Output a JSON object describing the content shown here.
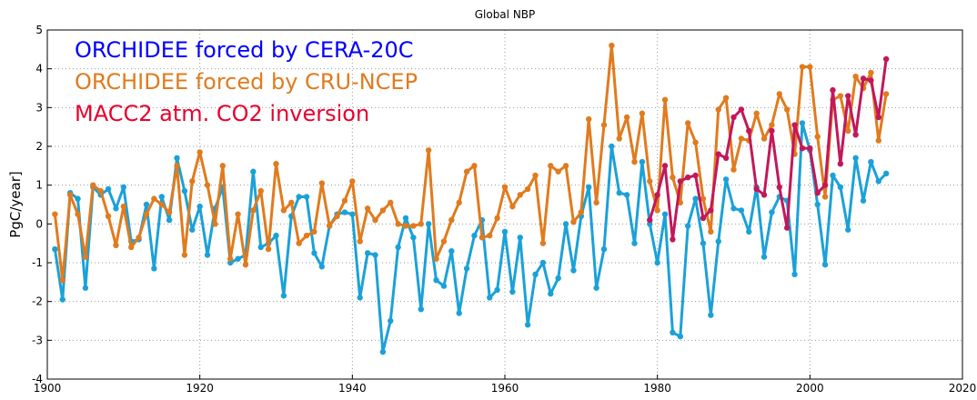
{
  "chart_data": {
    "type": "line",
    "title": "Global NBP",
    "y_label": "PgC/year]",
    "x": [
      1901,
      1902,
      1903,
      1904,
      1905,
      1906,
      1907,
      1908,
      1909,
      1910,
      1911,
      1912,
      1913,
      1914,
      1915,
      1916,
      1917,
      1918,
      1919,
      1920,
      1921,
      1922,
      1923,
      1924,
      1925,
      1926,
      1927,
      1928,
      1929,
      1930,
      1931,
      1932,
      1933,
      1934,
      1935,
      1936,
      1937,
      1938,
      1939,
      1940,
      1941,
      1942,
      1943,
      1944,
      1945,
      1946,
      1947,
      1948,
      1949,
      1950,
      1951,
      1952,
      1953,
      1954,
      1955,
      1956,
      1957,
      1958,
      1959,
      1960,
      1961,
      1962,
      1963,
      1964,
      1965,
      1966,
      1967,
      1968,
      1969,
      1970,
      1971,
      1972,
      1973,
      1974,
      1975,
      1976,
      1977,
      1978,
      1979,
      1980,
      1981,
      1982,
      1983,
      1984,
      1985,
      1986,
      1987,
      1988,
      1989,
      1990,
      1991,
      1992,
      1993,
      1994,
      1995,
      1996,
      1997,
      1998,
      1999,
      2000,
      2001,
      2002,
      2003,
      2004,
      2005,
      2006,
      2007,
      2008,
      2009,
      2010
    ],
    "series": [
      {
        "name": "ORCHIDEE forced by CERA-20C",
        "color": "#1ba1d8",
        "legend_color": "#0000ff",
        "values": [
          -0.65,
          -1.95,
          0.8,
          0.65,
          -1.65,
          0.95,
          0.75,
          0.9,
          0.4,
          0.95,
          -0.45,
          -0.4,
          0.5,
          -1.15,
          0.7,
          0.1,
          1.7,
          0.85,
          -0.15,
          0.45,
          -0.8,
          0.4,
          0.95,
          -1.0,
          -0.9,
          -0.8,
          1.35,
          -0.6,
          -0.5,
          -0.3,
          -1.85,
          0.2,
          0.7,
          0.7,
          -0.75,
          -1.1,
          -0.05,
          0.25,
          0.3,
          0.25,
          -1.9,
          -0.75,
          -0.8,
          -3.3,
          -2.5,
          -0.6,
          0.15,
          -0.35,
          -2.2,
          0.0,
          -1.45,
          -1.6,
          -0.7,
          -2.3,
          -1.15,
          -0.3,
          0.1,
          -1.9,
          -1.7,
          -0.2,
          -1.75,
          -0.35,
          -2.6,
          -1.3,
          -1.0,
          -1.8,
          -1.4,
          0.0,
          -1.2,
          0.2,
          0.95,
          -1.65,
          -0.65,
          2.0,
          0.8,
          0.75,
          -0.5,
          1.6,
          0.0,
          -1.0,
          0.25,
          -2.8,
          -2.9,
          -0.05,
          0.65,
          -0.5,
          -2.35,
          -0.45,
          1.15,
          0.4,
          0.35,
          -0.2,
          0.95,
          -0.85,
          0.3,
          0.7,
          0.6,
          -1.3,
          2.6,
          1.9,
          0.5,
          -1.05,
          1.25,
          0.95,
          -0.15,
          1.7,
          0.6,
          1.6,
          1.1,
          1.3
        ]
      },
      {
        "name": "ORCHIDEE forced by CRU-NCEP",
        "color": "#e07b1e",
        "legend_color": "#e07b1e",
        "values": [
          0.25,
          -1.45,
          0.75,
          0.25,
          -0.85,
          1.0,
          0.85,
          0.2,
          -0.55,
          0.45,
          -0.6,
          -0.35,
          0.25,
          0.65,
          0.5,
          0.3,
          1.5,
          -0.8,
          1.1,
          1.85,
          1.0,
          0.0,
          1.5,
          -0.9,
          0.25,
          -1.05,
          0.35,
          0.85,
          -0.65,
          1.55,
          0.35,
          0.55,
          -0.5,
          -0.3,
          -0.2,
          1.05,
          -0.05,
          0.2,
          0.6,
          1.1,
          -0.45,
          0.4,
          0.1,
          0.35,
          0.55,
          0.0,
          -0.05,
          -0.05,
          0.0,
          1.9,
          -0.9,
          -0.45,
          0.1,
          0.55,
          1.35,
          1.5,
          -0.35,
          -0.3,
          0.15,
          0.95,
          0.45,
          0.75,
          0.9,
          1.25,
          -0.5,
          1.5,
          1.35,
          1.5,
          0.05,
          0.3,
          2.7,
          0.55,
          2.55,
          4.6,
          2.2,
          2.75,
          1.6,
          2.85,
          1.1,
          0.35,
          3.2,
          1.2,
          0.55,
          2.6,
          2.1,
          0.65,
          -0.2,
          2.95,
          3.25,
          1.4,
          2.2,
          2.15,
          2.85,
          2.2,
          2.55,
          3.35,
          2.95,
          1.8,
          4.05,
          4.05,
          2.25,
          0.7,
          3.2,
          3.3,
          2.4,
          3.8,
          3.5,
          3.9,
          2.15,
          3.35
        ]
      },
      {
        "name": "MACC2 atm. CO2 inversion",
        "color": "#c2185b",
        "legend_color": "#e8002d",
        "values": [
          null,
          null,
          null,
          null,
          null,
          null,
          null,
          null,
          null,
          null,
          null,
          null,
          null,
          null,
          null,
          null,
          null,
          null,
          null,
          null,
          null,
          null,
          null,
          null,
          null,
          null,
          null,
          null,
          null,
          null,
          null,
          null,
          null,
          null,
          null,
          null,
          null,
          null,
          null,
          null,
          null,
          null,
          null,
          null,
          null,
          null,
          null,
          null,
          null,
          null,
          null,
          null,
          null,
          null,
          null,
          null,
          null,
          null,
          null,
          null,
          null,
          null,
          null,
          null,
          null,
          null,
          null,
          null,
          null,
          null,
          null,
          null,
          null,
          null,
          null,
          null,
          null,
          null,
          0.1,
          0.75,
          1.5,
          -0.4,
          1.1,
          1.2,
          1.25,
          0.15,
          0.35,
          1.8,
          1.7,
          2.75,
          2.95,
          2.4,
          0.9,
          0.75,
          2.4,
          0.95,
          -0.1,
          2.55,
          1.95,
          1.95,
          0.8,
          1.0,
          3.45,
          1.55,
          3.3,
          2.3,
          3.75,
          3.7,
          2.75,
          4.25
        ]
      }
    ],
    "xlim": [
      1900,
      2020
    ],
    "xticks": [
      1900,
      1920,
      1940,
      1960,
      1980,
      2000,
      2020
    ],
    "ylim": [
      -4,
      5
    ],
    "yticks": [
      -4,
      -3,
      -2,
      -1,
      0,
      1,
      2,
      3,
      4,
      5
    ],
    "grid": true,
    "legend": "upper left"
  }
}
